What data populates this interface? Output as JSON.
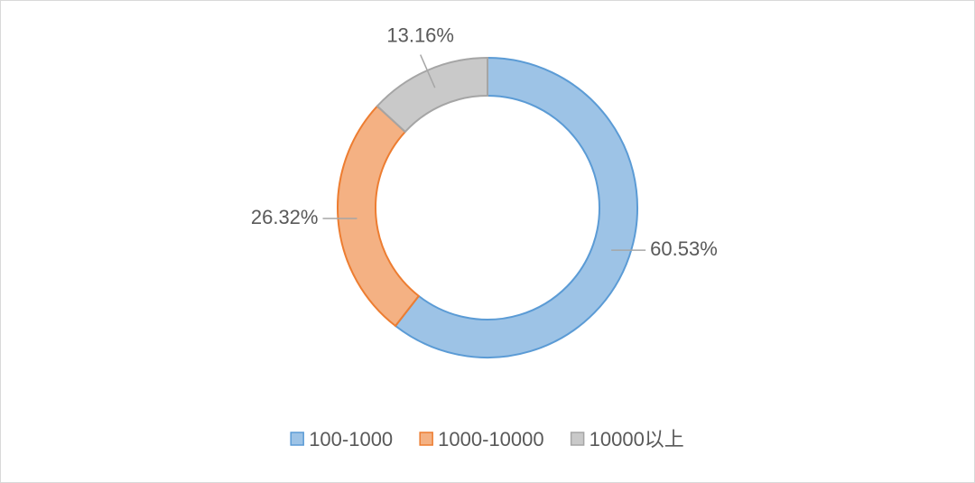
{
  "chart_data": {
    "type": "donut",
    "categories": [
      "100-1000",
      "1000-10000",
      "10000以上"
    ],
    "values": [
      60.53,
      26.32,
      13.16
    ],
    "value_labels": [
      "60.53%",
      "26.32%",
      "13.16%"
    ],
    "colors": [
      "#5b9bd5",
      "#ed7d31",
      "#a5a5a5"
    ],
    "legend": "bottom"
  }
}
